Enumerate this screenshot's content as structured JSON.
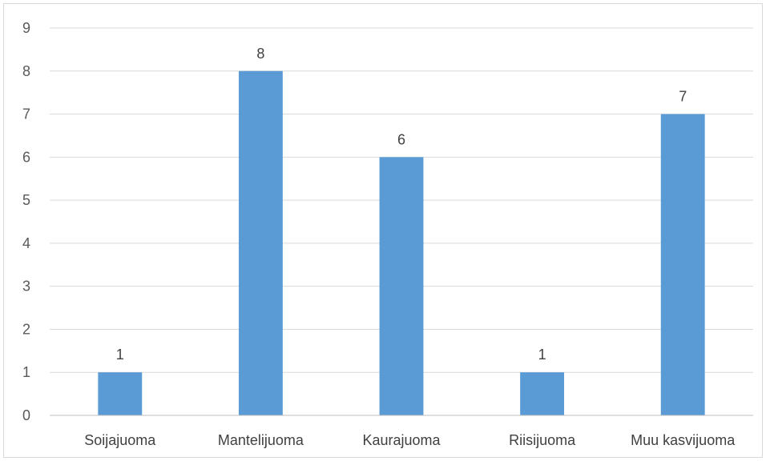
{
  "chart_data": {
    "type": "bar",
    "title": "",
    "xlabel": "",
    "ylabel": "",
    "categories": [
      "Soijajuoma",
      "Mantelijuoma",
      "Kaurajuoma",
      "Riisijuoma",
      "Muu kasvijuoma"
    ],
    "values": [
      1,
      8,
      6,
      1,
      7
    ],
    "ylim": [
      0,
      9
    ],
    "yticks": [
      "0",
      "1",
      "2",
      "3",
      "4",
      "5",
      "6",
      "7",
      "8",
      "9"
    ],
    "data_labels": [
      "1",
      "8",
      "6",
      "1",
      "7"
    ],
    "grid": true,
    "legend": "none",
    "colors": {
      "bar": "#5b9bd5",
      "grid": "#d9d9d9",
      "axis": "#bfbfbf"
    }
  }
}
